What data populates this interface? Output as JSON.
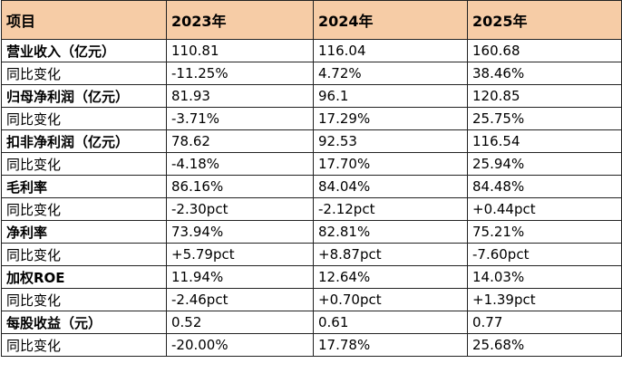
{
  "table": {
    "headers": [
      "项目",
      "2023年",
      "2024年",
      "2025年"
    ],
    "header_bg": "#f6cca6",
    "rows": [
      {
        "label": "营业收入（亿元）",
        "bold": true,
        "values": [
          "110.81",
          "116.04",
          "160.68"
        ]
      },
      {
        "label": "同比变化",
        "bold": false,
        "values": [
          "-11.25%",
          "4.72%",
          "38.46%"
        ]
      },
      {
        "label": "归母净利润（亿元）",
        "bold": true,
        "values": [
          "81.93",
          "96.1",
          "120.85"
        ]
      },
      {
        "label": "同比变化",
        "bold": false,
        "values": [
          "-3.71%",
          "17.29%",
          "25.75%"
        ]
      },
      {
        "label": "扣非净利润（亿元）",
        "bold": true,
        "values": [
          "78.62",
          "92.53",
          "116.54"
        ]
      },
      {
        "label": "同比变化",
        "bold": false,
        "values": [
          "-4.18%",
          "17.70%",
          "25.94%"
        ]
      },
      {
        "label": "毛利率",
        "bold": true,
        "values": [
          "86.16%",
          "84.04%",
          "84.48%"
        ]
      },
      {
        "label": "同比变化",
        "bold": false,
        "values": [
          "-2.30pct",
          "-2.12pct",
          "+0.44pct"
        ]
      },
      {
        "label": "净利率",
        "bold": true,
        "values": [
          "73.94%",
          "82.81%",
          "75.21%"
        ]
      },
      {
        "label": "同比变化",
        "bold": false,
        "values": [
          "+5.79pct",
          "+8.87pct",
          "-7.60pct"
        ]
      },
      {
        "label": "加权ROE",
        "bold": true,
        "values": [
          "11.94%",
          "12.64%",
          "14.03%"
        ]
      },
      {
        "label": "同比变化",
        "bold": false,
        "values": [
          "-2.46pct",
          "+0.70pct",
          "+1.39pct"
        ]
      },
      {
        "label": "每股收益（元）",
        "bold": true,
        "values": [
          "0.52",
          "0.61",
          "0.77"
        ]
      },
      {
        "label": "同比变化",
        "bold": false,
        "values": [
          "-20.00%",
          "17.78%",
          "25.68%"
        ]
      }
    ]
  }
}
